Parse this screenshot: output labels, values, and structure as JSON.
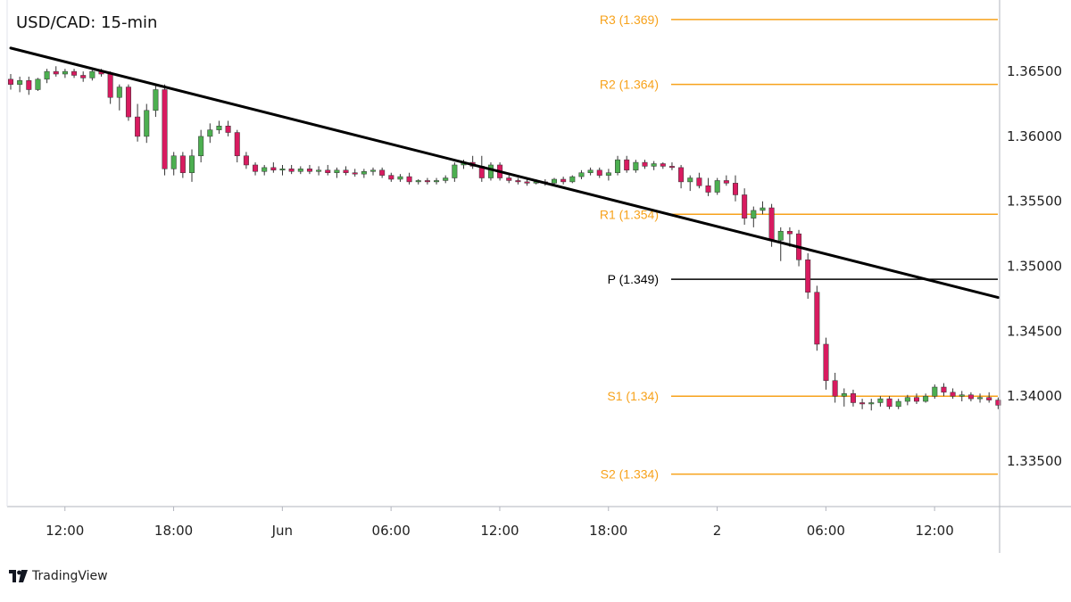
{
  "chart_data": {
    "type": "candlestick",
    "title": "USD/CAD: 15-min",
    "ylim": [
      1.3315,
      1.3705
    ],
    "y_ticks": [
      "1.36500",
      "1.36000",
      "1.35500",
      "1.35000",
      "1.34500",
      "1.34000",
      "1.33500"
    ],
    "y_tick_values": [
      1.365,
      1.36,
      1.355,
      1.35,
      1.345,
      1.34,
      1.335
    ],
    "x_ticks": [
      "12:00",
      "18:00",
      "Jun",
      "06:00",
      "12:00",
      "18:00",
      "2",
      "06:00",
      "12:00"
    ],
    "x_tick_bars": [
      5,
      17,
      29,
      41,
      53,
      65,
      77,
      89,
      101
    ],
    "bar_count": 110,
    "levels": [
      {
        "label": "R3 (1.369)",
        "value": 1.369,
        "color": "#f7a21b"
      },
      {
        "label": "R2 (1.364)",
        "value": 1.364,
        "color": "#f7a21b"
      },
      {
        "label": "R1 (1.354)",
        "value": 1.354,
        "color": "#f7a21b"
      },
      {
        "label": "P (1.349)",
        "value": 1.349,
        "color": "#000000"
      },
      {
        "label": "S1 (1.34)",
        "value": 1.34,
        "color": "#f7a21b"
      },
      {
        "label": "S2 (1.334)",
        "value": 1.334,
        "color": "#f7a21b"
      }
    ],
    "trendline": {
      "start": [
        0,
        1.3668
      ],
      "end": [
        109,
        1.3476
      ]
    },
    "candles_ohlc": [
      [
        1.3644,
        1.3648,
        1.3636,
        1.364
      ],
      [
        1.364,
        1.3646,
        1.3634,
        1.3643
      ],
      [
        1.3643,
        1.3646,
        1.3632,
        1.3636
      ],
      [
        1.3636,
        1.3645,
        1.3635,
        1.3644
      ],
      [
        1.3644,
        1.3652,
        1.3641,
        1.365
      ],
      [
        1.365,
        1.3654,
        1.3646,
        1.3648
      ],
      [
        1.3648,
        1.3652,
        1.3645,
        1.365
      ],
      [
        1.365,
        1.3652,
        1.3645,
        1.3647
      ],
      [
        1.3647,
        1.365,
        1.3642,
        1.3645
      ],
      [
        1.3645,
        1.3651,
        1.3643,
        1.365
      ],
      [
        1.365,
        1.3652,
        1.3646,
        1.3648
      ],
      [
        1.3648,
        1.365,
        1.3625,
        1.363
      ],
      [
        1.363,
        1.364,
        1.362,
        1.3638
      ],
      [
        1.3638,
        1.364,
        1.3612,
        1.3615
      ],
      [
        1.3615,
        1.3625,
        1.3596,
        1.36
      ],
      [
        1.36,
        1.3625,
        1.3595,
        1.362
      ],
      [
        1.362,
        1.364,
        1.3615,
        1.3636
      ],
      [
        1.3636,
        1.364,
        1.357,
        1.3575
      ],
      [
        1.3575,
        1.3588,
        1.357,
        1.3585
      ],
      [
        1.3585,
        1.3588,
        1.3568,
        1.3572
      ],
      [
        1.3572,
        1.359,
        1.3565,
        1.3585
      ],
      [
        1.3585,
        1.3605,
        1.358,
        1.36
      ],
      [
        1.36,
        1.361,
        1.3595,
        1.3605
      ],
      [
        1.3605,
        1.3612,
        1.3602,
        1.3608
      ],
      [
        1.3608,
        1.3612,
        1.36,
        1.3603
      ],
      [
        1.3603,
        1.3605,
        1.358,
        1.3585
      ],
      [
        1.3585,
        1.3588,
        1.3575,
        1.3578
      ],
      [
        1.3578,
        1.358,
        1.357,
        1.3573
      ],
      [
        1.3573,
        1.3578,
        1.357,
        1.3576
      ],
      [
        1.3576,
        1.358,
        1.3572,
        1.3574
      ],
      [
        1.3574,
        1.3578,
        1.357,
        1.3575
      ],
      [
        1.3575,
        1.3578,
        1.3571,
        1.3573
      ],
      [
        1.3573,
        1.3577,
        1.3571,
        1.3575
      ],
      [
        1.3575,
        1.3578,
        1.3571,
        1.3573
      ],
      [
        1.3573,
        1.3577,
        1.357,
        1.3574
      ],
      [
        1.3574,
        1.3578,
        1.357,
        1.3572
      ],
      [
        1.3572,
        1.3576,
        1.3568,
        1.3574
      ],
      [
        1.3574,
        1.3577,
        1.357,
        1.3572
      ],
      [
        1.3572,
        1.3575,
        1.3569,
        1.3571
      ],
      [
        1.3571,
        1.3575,
        1.3568,
        1.3573
      ],
      [
        1.3573,
        1.3576,
        1.357,
        1.3574
      ],
      [
        1.3574,
        1.3576,
        1.3568,
        1.357
      ],
      [
        1.357,
        1.3572,
        1.3565,
        1.3567
      ],
      [
        1.3567,
        1.3571,
        1.3565,
        1.3569
      ],
      [
        1.3569,
        1.3572,
        1.3563,
        1.3565
      ],
      [
        1.3565,
        1.3567,
        1.3563,
        1.3566
      ],
      [
        1.3566,
        1.3568,
        1.3563,
        1.3565
      ],
      [
        1.3565,
        1.3568,
        1.3563,
        1.3566
      ],
      [
        1.3566,
        1.357,
        1.3564,
        1.3568
      ],
      [
        1.3568,
        1.358,
        1.3565,
        1.3578
      ],
      [
        1.3578,
        1.3582,
        1.3575,
        1.358
      ],
      [
        1.358,
        1.3585,
        1.3575,
        1.3577
      ],
      [
        1.3577,
        1.3585,
        1.3565,
        1.3568
      ],
      [
        1.3568,
        1.358,
        1.3566,
        1.3578
      ],
      [
        1.3578,
        1.358,
        1.3566,
        1.3568
      ],
      [
        1.3568,
        1.357,
        1.3564,
        1.3566
      ],
      [
        1.3566,
        1.3568,
        1.3563,
        1.3565
      ],
      [
        1.3565,
        1.3567,
        1.3562,
        1.3564
      ],
      [
        1.3564,
        1.3567,
        1.3563,
        1.3565
      ],
      [
        1.3565,
        1.3567,
        1.3562,
        1.3564
      ],
      [
        1.3564,
        1.3568,
        1.3562,
        1.3567
      ],
      [
        1.3567,
        1.3569,
        1.3563,
        1.3565
      ],
      [
        1.3565,
        1.357,
        1.3564,
        1.3569
      ],
      [
        1.3569,
        1.3574,
        1.3567,
        1.3572
      ],
      [
        1.3572,
        1.3576,
        1.357,
        1.3574
      ],
      [
        1.3574,
        1.3576,
        1.3568,
        1.357
      ],
      [
        1.357,
        1.3575,
        1.3566,
        1.3572
      ],
      [
        1.3572,
        1.3585,
        1.357,
        1.3582
      ],
      [
        1.3582,
        1.3585,
        1.3572,
        1.3574
      ],
      [
        1.3574,
        1.3582,
        1.3572,
        1.358
      ],
      [
        1.358,
        1.3582,
        1.3575,
        1.3577
      ],
      [
        1.3577,
        1.3581,
        1.3574,
        1.3579
      ],
      [
        1.3579,
        1.358,
        1.3575,
        1.3577
      ],
      [
        1.3577,
        1.358,
        1.3574,
        1.3576
      ],
      [
        1.3576,
        1.3578,
        1.356,
        1.3565
      ],
      [
        1.3565,
        1.357,
        1.3558,
        1.3568
      ],
      [
        1.3568,
        1.3572,
        1.356,
        1.3562
      ],
      [
        1.3562,
        1.3568,
        1.3554,
        1.3557
      ],
      [
        1.3557,
        1.3568,
        1.3555,
        1.3566
      ],
      [
        1.3566,
        1.357,
        1.3562,
        1.3564
      ],
      [
        1.3564,
        1.357,
        1.355,
        1.3555
      ],
      [
        1.3555,
        1.356,
        1.3532,
        1.3537
      ],
      [
        1.3537,
        1.3546,
        1.353,
        1.3543
      ],
      [
        1.3543,
        1.355,
        1.354,
        1.3545
      ],
      [
        1.3545,
        1.3548,
        1.3515,
        1.352
      ],
      [
        1.352,
        1.353,
        1.3504,
        1.3527
      ],
      [
        1.3527,
        1.353,
        1.3515,
        1.3525
      ],
      [
        1.3525,
        1.3528,
        1.35,
        1.3505
      ],
      [
        1.3505,
        1.351,
        1.3475,
        1.348
      ],
      [
        1.348,
        1.3485,
        1.3435,
        1.344
      ],
      [
        1.344,
        1.3445,
        1.3405,
        1.3412
      ],
      [
        1.3412,
        1.3418,
        1.3395,
        1.34
      ],
      [
        1.34,
        1.3406,
        1.3392,
        1.3402
      ],
      [
        1.3402,
        1.3405,
        1.3392,
        1.3395
      ],
      [
        1.3395,
        1.3398,
        1.339,
        1.3394
      ],
      [
        1.3394,
        1.3398,
        1.3389,
        1.3395
      ],
      [
        1.3395,
        1.34,
        1.3392,
        1.3398
      ],
      [
        1.3398,
        1.34,
        1.339,
        1.3392
      ],
      [
        1.3392,
        1.3398,
        1.339,
        1.3396
      ],
      [
        1.3396,
        1.3401,
        1.3393,
        1.3399
      ],
      [
        1.3399,
        1.3402,
        1.3394,
        1.3396
      ],
      [
        1.3396,
        1.3402,
        1.3395,
        1.34
      ],
      [
        1.34,
        1.3409,
        1.3398,
        1.3407
      ],
      [
        1.3407,
        1.341,
        1.34,
        1.3403
      ],
      [
        1.3403,
        1.3406,
        1.3398,
        1.34
      ],
      [
        1.34,
        1.3404,
        1.3396,
        1.3401
      ],
      [
        1.3401,
        1.3403,
        1.3396,
        1.3398
      ],
      [
        1.3398,
        1.3402,
        1.3395,
        1.3399
      ],
      [
        1.3399,
        1.3403,
        1.3395,
        1.3397
      ],
      [
        1.3397,
        1.3399,
        1.339,
        1.3393
      ]
    ]
  },
  "brand": {
    "name": "TradingView",
    "logo_icon": "tradingview-logo-icon"
  },
  "colors": {
    "up": "#4caf50",
    "down": "#d81b60",
    "wick": "#333333",
    "trend": "#000000",
    "axis": "#b2b5be"
  }
}
